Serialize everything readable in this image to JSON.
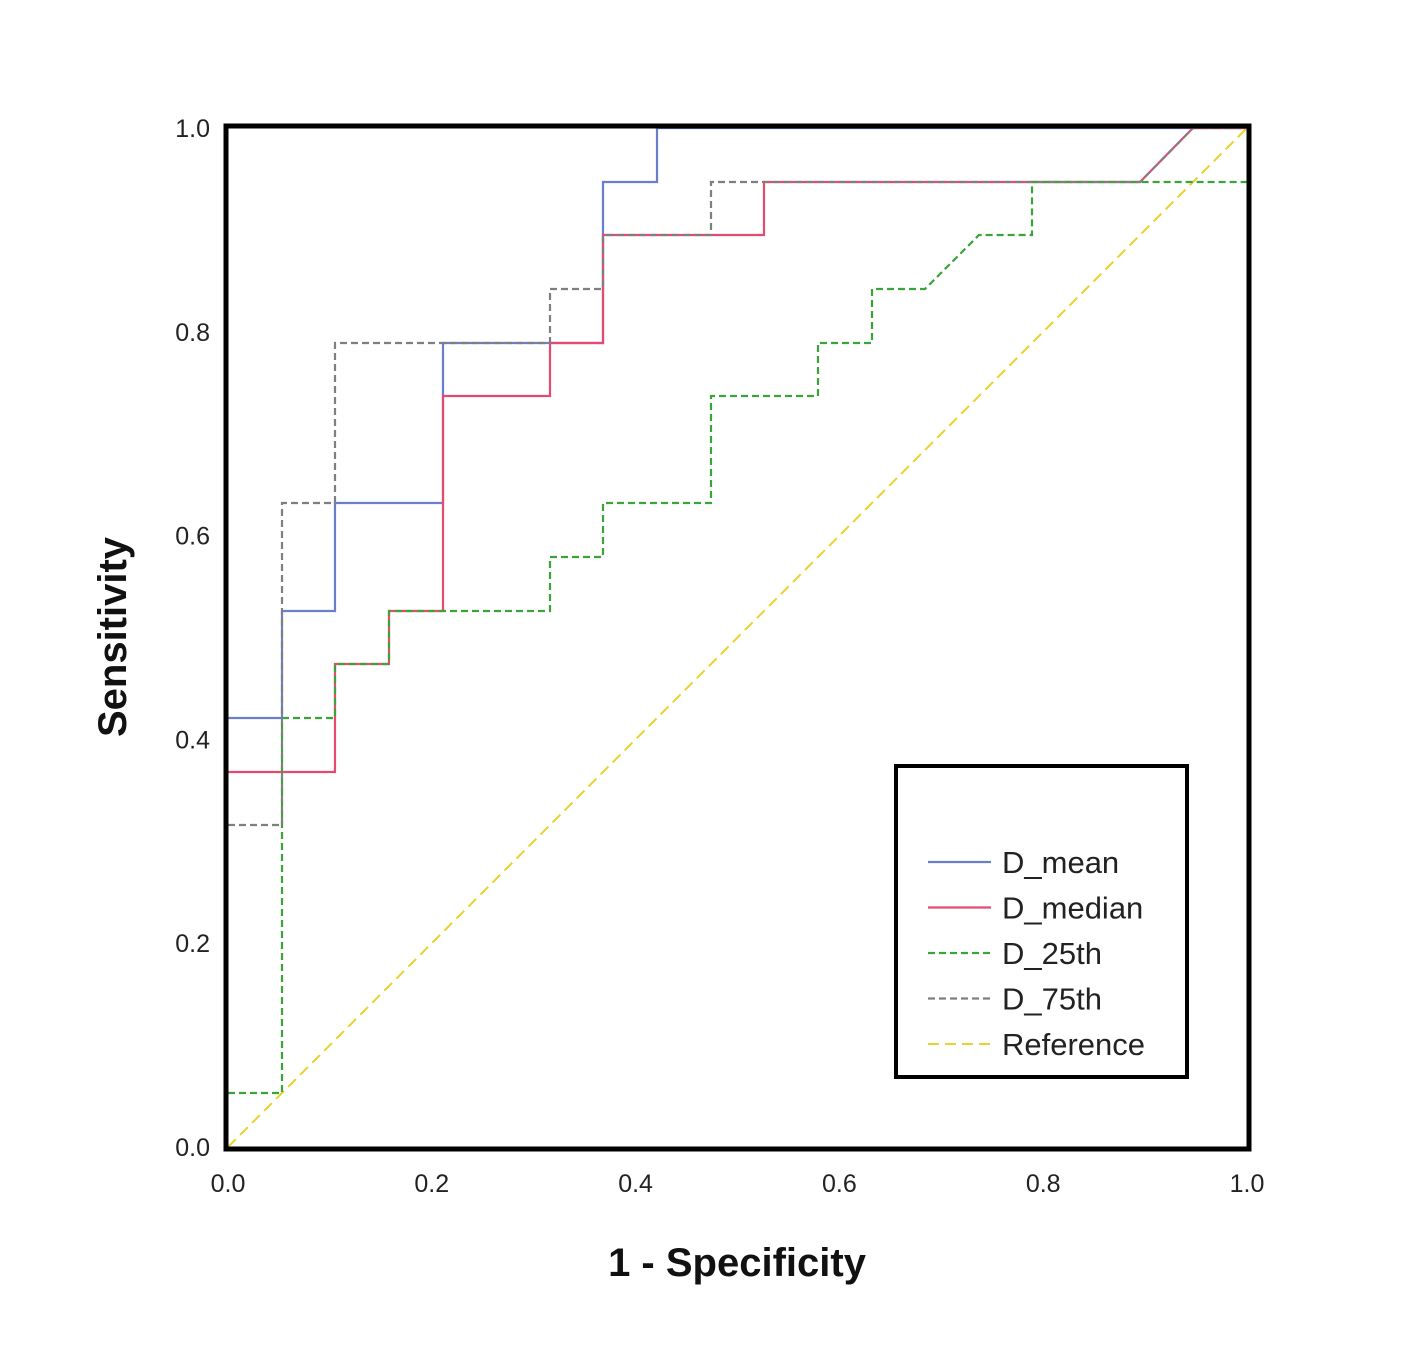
{
  "chart_data": {
    "type": "line",
    "title": "",
    "xlabel": "1 - Specificity",
    "ylabel": "Sensitivity",
    "xlim": [
      0,
      1
    ],
    "ylim": [
      0,
      1
    ],
    "xticks": [
      "0.0",
      "0.2",
      "0.4",
      "0.6",
      "0.8",
      "1.0"
    ],
    "yticks": [
      "0.0",
      "0.2",
      "0.4",
      "0.6",
      "0.8",
      "1.0"
    ],
    "legend_position": "bottom-right",
    "series": [
      {
        "name": "D_mean",
        "color": "#6a7fcc",
        "style": "solid",
        "points": [
          [
            0,
            0.421
          ],
          [
            0.053,
            0.421
          ],
          [
            0.053,
            0.526
          ],
          [
            0.105,
            0.526
          ],
          [
            0.105,
            0.632
          ],
          [
            0.211,
            0.632
          ],
          [
            0.211,
            0.789
          ],
          [
            0.368,
            0.789
          ],
          [
            0.368,
            0.947
          ],
          [
            0.421,
            0.947
          ],
          [
            0.421,
            1.0
          ],
          [
            1.0,
            1.0
          ]
        ]
      },
      {
        "name": "D_median",
        "color": "#e64a6f",
        "style": "solid",
        "points": [
          [
            0,
            0.368
          ],
          [
            0.105,
            0.368
          ],
          [
            0.105,
            0.474
          ],
          [
            0.158,
            0.474
          ],
          [
            0.158,
            0.526
          ],
          [
            0.211,
            0.526
          ],
          [
            0.211,
            0.737
          ],
          [
            0.316,
            0.737
          ],
          [
            0.316,
            0.789
          ],
          [
            0.368,
            0.789
          ],
          [
            0.368,
            0.895
          ],
          [
            0.526,
            0.895
          ],
          [
            0.526,
            0.947
          ],
          [
            0.895,
            0.947
          ],
          [
            0.947,
            1.0
          ],
          [
            1.0,
            1.0
          ]
        ]
      },
      {
        "name": "D_25th",
        "color": "#3aa33a",
        "style": "dashed",
        "points": [
          [
            0,
            0.053
          ],
          [
            0.053,
            0.053
          ],
          [
            0.053,
            0.421
          ],
          [
            0.105,
            0.421
          ],
          [
            0.105,
            0.474
          ],
          [
            0.158,
            0.474
          ],
          [
            0.158,
            0.526
          ],
          [
            0.316,
            0.526
          ],
          [
            0.316,
            0.579
          ],
          [
            0.368,
            0.579
          ],
          [
            0.368,
            0.632
          ],
          [
            0.474,
            0.632
          ],
          [
            0.474,
            0.737
          ],
          [
            0.579,
            0.737
          ],
          [
            0.579,
            0.789
          ],
          [
            0.632,
            0.789
          ],
          [
            0.632,
            0.842
          ],
          [
            0.684,
            0.842
          ],
          [
            0.737,
            0.895
          ],
          [
            0.789,
            0.895
          ],
          [
            0.789,
            0.947
          ],
          [
            1.0,
            0.947
          ]
        ]
      },
      {
        "name": "D_75th",
        "color": "#7f7f7f",
        "style": "dashed",
        "points": [
          [
            0,
            0.316
          ],
          [
            0.053,
            0.316
          ],
          [
            0.053,
            0.632
          ],
          [
            0.105,
            0.632
          ],
          [
            0.105,
            0.789
          ],
          [
            0.316,
            0.789
          ],
          [
            0.316,
            0.842
          ],
          [
            0.368,
            0.842
          ],
          [
            0.368,
            0.895
          ],
          [
            0.474,
            0.895
          ],
          [
            0.474,
            0.947
          ],
          [
            0.895,
            0.947
          ],
          [
            0.947,
            1.0
          ],
          [
            1.0,
            1.0
          ]
        ]
      },
      {
        "name": "Reference",
        "color": "#e8d22c",
        "style": "dashed",
        "points": [
          [
            0,
            0
          ],
          [
            1,
            1
          ]
        ]
      }
    ]
  }
}
